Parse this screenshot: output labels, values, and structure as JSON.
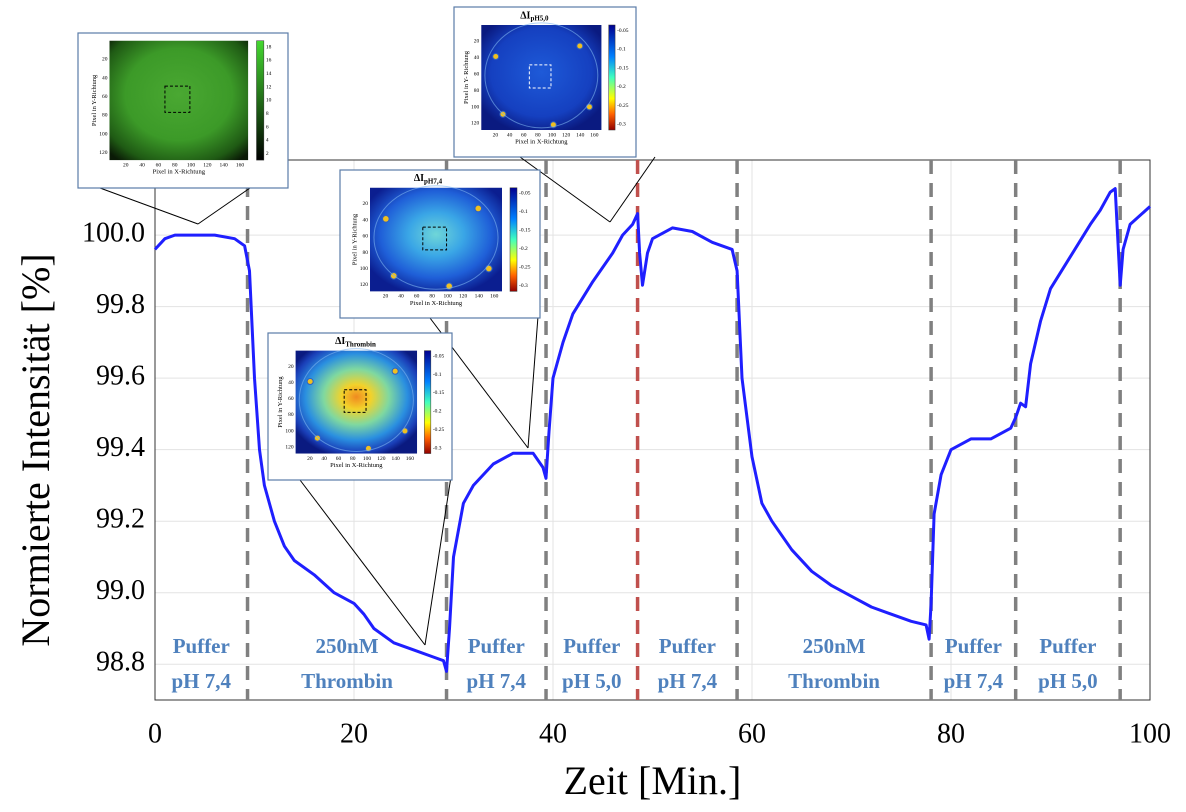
{
  "chart_data": {
    "type": "line",
    "xlabel": "Zeit [Min.]",
    "ylabel": "Normierte Intensität [%]",
    "xlim": [
      0,
      100
    ],
    "ylim": [
      98.7,
      100.21
    ],
    "xticks": [
      0,
      20,
      40,
      60,
      80,
      100
    ],
    "yticks": [
      {
        "value": 98.8,
        "label": "98.8"
      },
      {
        "value": 99,
        "label": "99.0"
      },
      99.2,
      99.4,
      99.6,
      99.8,
      {
        "value": 100,
        "label": "100.0"
      }
    ],
    "grid": true,
    "series": [
      {
        "color": "#1f1fff",
        "x": [
          0,
          1,
          2,
          4,
          6,
          8,
          9,
          9.5,
          10,
          10.5,
          11,
          12,
          13,
          14,
          16,
          18,
          20,
          21,
          22,
          24,
          26,
          28,
          29,
          29.3,
          29.6,
          30,
          31,
          32,
          34,
          36,
          38,
          39,
          39.3,
          39.6,
          40,
          41,
          42,
          44,
          46,
          47,
          48,
          48.5,
          48.7,
          49,
          49.5,
          50,
          52,
          54,
          56,
          58,
          58.5,
          59,
          60,
          61,
          62,
          64,
          66,
          68,
          70,
          72,
          74,
          76,
          77.5,
          77.8,
          78,
          78.3,
          79,
          80,
          82,
          84,
          86,
          86.5,
          87,
          87.5,
          88,
          89,
          90,
          92,
          94,
          95,
          96,
          96.5,
          97,
          97.3,
          98,
          100
        ],
        "values": [
          99.96,
          99.99,
          100.0,
          100.0,
          100.0,
          99.99,
          99.97,
          99.9,
          99.6,
          99.4,
          99.3,
          99.2,
          99.13,
          99.09,
          99.05,
          99.0,
          98.97,
          98.94,
          98.9,
          98.86,
          98.84,
          98.82,
          98.81,
          98.78,
          98.9,
          99.1,
          99.25,
          99.3,
          99.36,
          99.39,
          99.39,
          99.35,
          99.32,
          99.45,
          99.6,
          99.7,
          99.78,
          99.87,
          99.95,
          100.0,
          100.03,
          100.06,
          99.95,
          99.86,
          99.95,
          99.99,
          100.02,
          100.01,
          99.98,
          99.96,
          99.9,
          99.6,
          99.38,
          99.25,
          99.2,
          99.12,
          99.06,
          99.02,
          98.99,
          98.96,
          98.94,
          98.92,
          98.91,
          98.87,
          98.97,
          99.22,
          99.33,
          99.4,
          99.43,
          99.43,
          99.46,
          99.49,
          99.53,
          99.52,
          99.64,
          99.76,
          99.85,
          99.94,
          100.03,
          100.07,
          100.12,
          100.13,
          99.86,
          99.96,
          100.03,
          100.08
        ]
      }
    ],
    "markers": [
      {
        "x": 9.3,
        "color": "#808080"
      },
      {
        "x": 29.3,
        "color": "#808080"
      },
      {
        "x": 39.3,
        "color": "#808080"
      },
      {
        "x": 48.5,
        "color": "#c0504d"
      },
      {
        "x": 58.5,
        "color": "#808080"
      },
      {
        "x": 78,
        "color": "#808080"
      },
      {
        "x": 86.5,
        "color": "#808080"
      },
      {
        "x": 97,
        "color": "#808080"
      }
    ],
    "phases": [
      [
        "Puffer",
        "pH 7,4"
      ],
      [
        "250nM",
        "Thrombin"
      ],
      [
        "Puffer",
        "pH 7,4"
      ],
      [
        "Puffer",
        "pH 5,0"
      ],
      [
        "Puffer",
        "pH 7,4"
      ],
      [
        "250nM",
        "Thrombin"
      ],
      [
        "Puffer",
        "pH 7,4"
      ],
      [
        "Puffer",
        "pH 5,0"
      ]
    ],
    "phase_color": "#4f81bd",
    "insets": [
      {
        "xlabel": "Pixel in X-Richtung",
        "ylabel": "Pixel in Y-Richtung",
        "xticks": [
          20,
          40,
          60,
          80,
          100,
          120,
          140,
          160
        ],
        "yticks": [
          20,
          40,
          60,
          80,
          100,
          120
        ],
        "cticks": [
          2,
          4,
          6,
          8,
          10,
          12,
          14,
          16,
          18
        ]
      },
      {
        "title": "ΔI",
        "subscript": "Thrombin",
        "xlabel": "Pixel in X-Richtung",
        "ylabel": "Pixel in Y-Richtung",
        "xticks": [
          20,
          40,
          60,
          80,
          100,
          120,
          140,
          160
        ],
        "yticks": [
          20,
          40,
          60,
          80,
          100,
          120
        ],
        "cticks": [
          -0.05,
          -0.1,
          -0.15,
          -0.2,
          -0.25,
          -0.3
        ]
      },
      {
        "title": "ΔI",
        "subscript": "pH7,4",
        "xlabel": "Pixel in X-Richtung",
        "ylabel": "Pixel in Y-Richtung",
        "xticks": [
          20,
          40,
          60,
          80,
          100,
          120,
          140,
          160
        ],
        "yticks": [
          20,
          40,
          60,
          80,
          100,
          120
        ],
        "cticks": [
          -0.05,
          -0.1,
          -0.15,
          -0.2,
          -0.25,
          -0.3
        ]
      },
      {
        "title": "ΔI",
        "subscript": "pH5,0",
        "xlabel": "Pixel in X-Richtung",
        "ylabel": "Pixel in Y- Richtung",
        "xticks": [
          20,
          40,
          60,
          80,
          100,
          120,
          140,
          160
        ],
        "yticks": [
          20,
          40,
          60,
          80,
          100,
          120
        ],
        "cticks": [
          -0.05,
          -0.1,
          -0.15,
          -0.2,
          -0.25,
          -0.3
        ]
      }
    ]
  }
}
